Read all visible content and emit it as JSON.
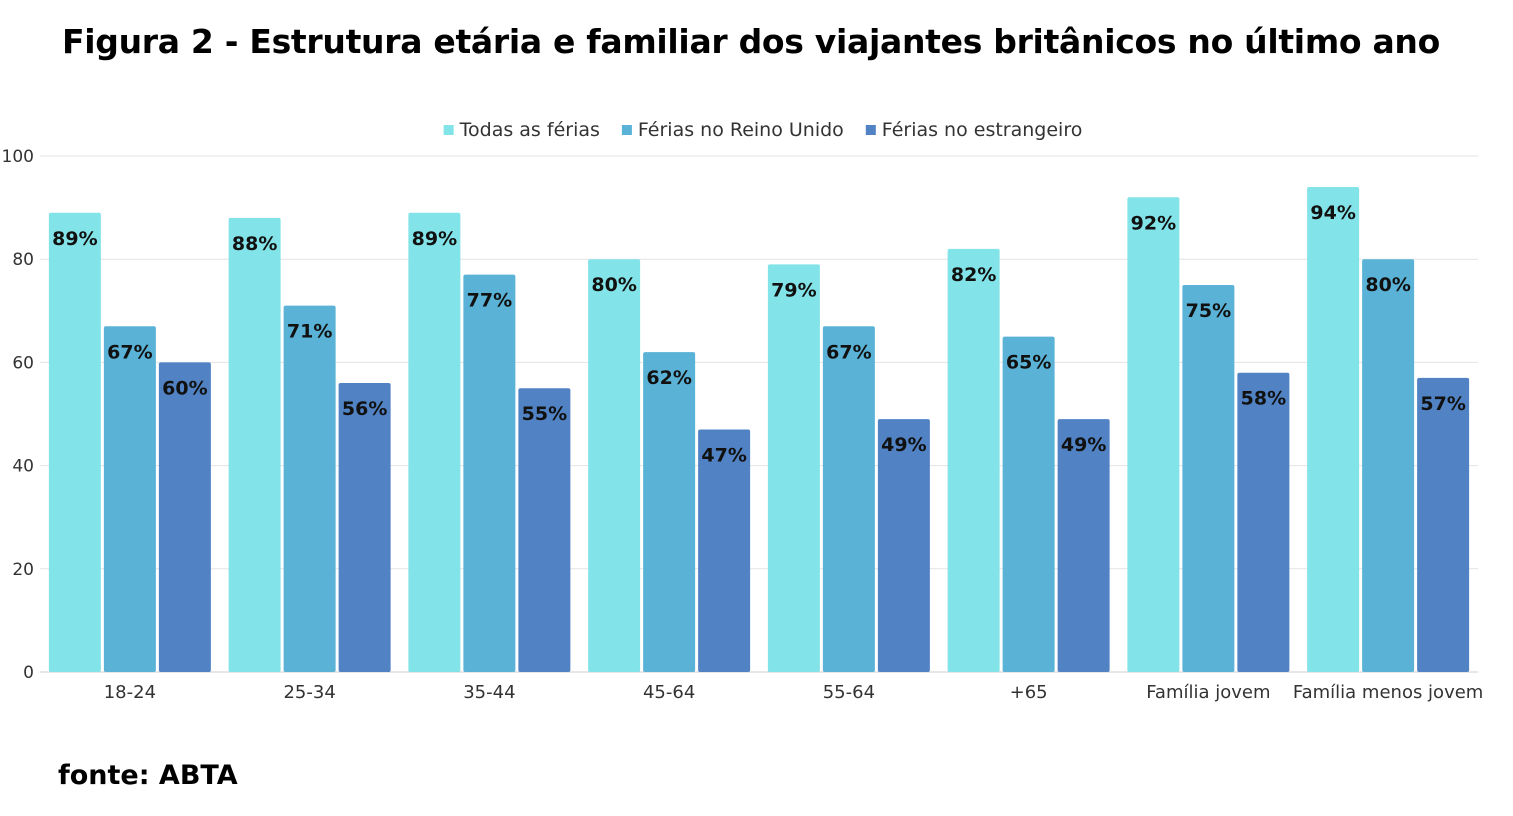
{
  "title": "Figura 2 - Estrutura etária e familiar dos viajantes britânicos no último ano",
  "source": "fonte: ABTA",
  "chart_data": {
    "type": "bar",
    "categories": [
      "18-24",
      "25-34",
      "35-44",
      "45-64",
      "55-64",
      "+65",
      "Família jovem",
      "Família menos jovem"
    ],
    "series": [
      {
        "name": "Todas as férias",
        "color": "#82E3E8",
        "values": [
          89,
          88,
          89,
          80,
          79,
          82,
          92,
          94
        ],
        "labels": [
          "89%",
          "88%",
          "89%",
          "80%",
          "79%",
          "82%",
          "92%",
          "94%"
        ]
      },
      {
        "name": "Férias no Reino Unido",
        "color": "#5AB3D6",
        "values": [
          67,
          71,
          77,
          62,
          67,
          65,
          75,
          80
        ],
        "labels": [
          "67%",
          "71%",
          "77%",
          "62%",
          "67%",
          "65%",
          "75%",
          "80%"
        ]
      },
      {
        "name": "Férias no estrangeiro",
        "color": "#5082C4",
        "values": [
          60,
          56,
          55,
          47,
          49,
          49,
          58,
          57
        ],
        "labels": [
          "60%",
          "56%",
          "55%",
          "47%",
          "49%",
          "49%",
          "58%",
          "57%"
        ]
      }
    ],
    "yticks": [
      "0",
      "20",
      "40",
      "60",
      "80",
      "100"
    ],
    "ylim": [
      0,
      100
    ],
    "grid": true,
    "legend": "top-center"
  }
}
